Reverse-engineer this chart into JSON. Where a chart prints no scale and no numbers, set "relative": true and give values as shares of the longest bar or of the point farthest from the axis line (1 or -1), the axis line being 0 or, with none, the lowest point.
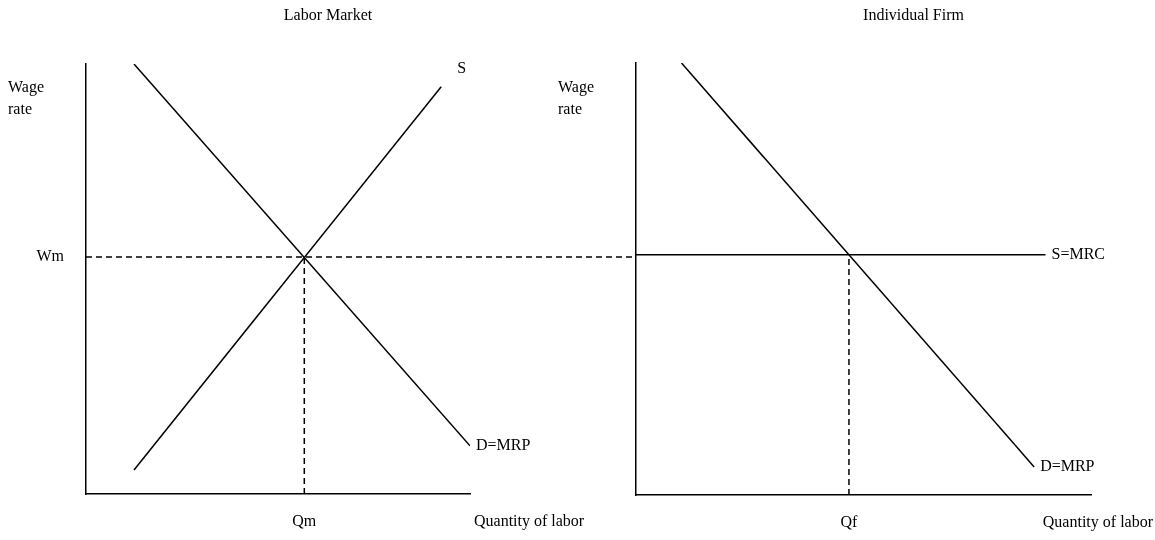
{
  "chart_data": [
    {
      "type": "line",
      "title": "Labor Market",
      "ylabel": "Wage rate",
      "xlabel": "Quantity of labor",
      "relative": true,
      "grid": false,
      "legend": false,
      "marker": "none",
      "line_style": "solid",
      "categories": [
        null,
        null,
        null,
        null,
        null,
        null,
        null,
        null,
        null,
        null,
        null,
        null,
        null,
        null,
        null,
        null,
        null,
        null,
        null,
        null,
        null,
        null,
        null,
        null,
        null,
        null,
        null,
        null,
        null,
        null,
        null,
        null,
        null,
        null,
        null,
        null,
        null,
        null,
        null,
        null,
        null
      ],
      "series": [
        {
          "name": "D=MRP",
          "color": "#000000",
          "values": [
            null,
            null,
            null,
            null,
            null,
            1,
            null,
            null,
            null,
            null,
            null,
            null,
            null,
            null,
            null,
            null,
            null,
            null,
            null,
            null,
            null,
            null,
            null,
            null,
            null,
            null,
            null,
            null,
            null,
            null,
            null,
            null,
            null,
            null,
            null,
            null,
            null,
            null,
            null,
            null,
            0.112
          ]
        },
        {
          "name": "S",
          "color": "#000000",
          "values": [
            null,
            null,
            null,
            null,
            null,
            0.056,
            null,
            null,
            null,
            null,
            null,
            null,
            null,
            null,
            null,
            null,
            null,
            null,
            null,
            null,
            null,
            null,
            null,
            null,
            null,
            null,
            null,
            null,
            null,
            null,
            null,
            null,
            null,
            null,
            null,
            null,
            null,
            0.947,
            null,
            null,
            null
          ]
        }
      ],
      "ref_lines": [
        {
          "axis": "y",
          "value": 0.551,
          "label": "Wm",
          "color": "#000000",
          "line_style": "dashed"
        },
        {
          "axis": "x",
          "label": "Qm",
          "color": "#000000",
          "line_style": "dashed"
        }
      ]
    },
    {
      "type": "line",
      "title": "Individual Firm",
      "ylabel": "Wage rate",
      "xlabel": "Quantity of labor",
      "relative": true,
      "grid": false,
      "legend": false,
      "marker": "none",
      "line_style": "solid",
      "categories": [
        null,
        null,
        null,
        null,
        null,
        null,
        null,
        null,
        null,
        null,
        null,
        null,
        null,
        null,
        null,
        null,
        null,
        null,
        null,
        null,
        null,
        null,
        null,
        null,
        null,
        null,
        null,
        null,
        null,
        null,
        null,
        null,
        null,
        null,
        null,
        null,
        null,
        null,
        null,
        null,
        null
      ],
      "series": [
        {
          "name": "D=MRP",
          "color": "#000000",
          "values": [
            null,
            null,
            null,
            null,
            1,
            null,
            null,
            null,
            null,
            null,
            null,
            null,
            null,
            null,
            null,
            null,
            null,
            null,
            null,
            null,
            null,
            null,
            null,
            null,
            null,
            null,
            null,
            null,
            null,
            null,
            null,
            null,
            null,
            null,
            null,
            0.065,
            null,
            null,
            null,
            null,
            null
          ]
        },
        {
          "name": "S=MRC",
          "color": "#000000",
          "values": [
            0.556,
            null,
            null,
            null,
            null,
            null,
            null,
            null,
            null,
            null,
            null,
            null,
            null,
            null,
            null,
            null,
            null,
            null,
            null,
            null,
            null,
            null,
            null,
            null,
            null,
            null,
            null,
            null,
            null,
            null,
            null,
            null,
            null,
            null,
            null,
            null,
            0.556,
            null,
            null,
            null,
            null
          ]
        }
      ],
      "ref_lines": [
        {
          "axis": "x",
          "label": "Qf",
          "color": "#000000",
          "line_style": "dashed"
        }
      ]
    }
  ]
}
